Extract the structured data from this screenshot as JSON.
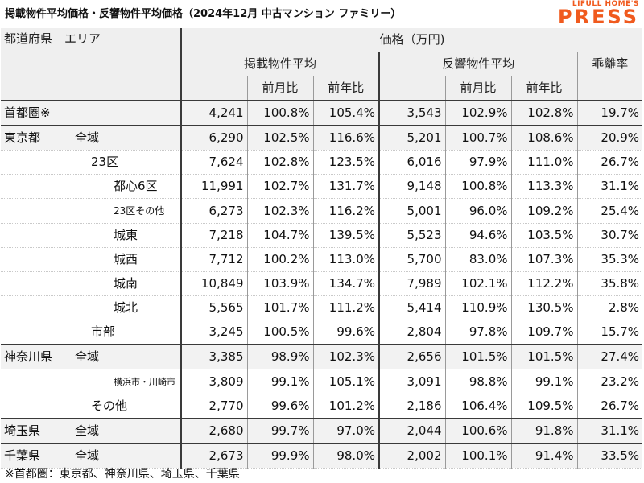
{
  "title": "掲載物件平均価格・反響物件平均価格（2024年12月 中古マンション ファミリー）",
  "logo": {
    "line1": "LIFULL HOME'S",
    "line2": "PRESS"
  },
  "header": {
    "region": "都道府県　エリア",
    "price_group": "価格（万円)",
    "listed_avg": "掲載物件平均",
    "response_avg": "反響物件平均",
    "divergence": "乖離率",
    "mom": "前月比",
    "yoy": "前年比"
  },
  "rows": [
    {
      "pref": "首都圏※",
      "area": "",
      "lp": "4,241",
      "lm": "100.8%",
      "ly": "105.4%",
      "rp": "3,543",
      "rm": "102.9%",
      "ry": "102.8%",
      "div": "19.7%"
    },
    {
      "pref": "東京都",
      "area": "全域",
      "lp": "6,290",
      "lm": "102.5%",
      "ly": "116.6%",
      "rp": "5,201",
      "rm": "100.7%",
      "ry": "108.6%",
      "div": "20.9%"
    },
    {
      "pref": "",
      "area": "23区",
      "lp": "7,624",
      "lm": "102.8%",
      "ly": "123.5%",
      "rp": "6,016",
      "rm": "97.9%",
      "ry": "111.0%",
      "div": "26.7%"
    },
    {
      "pref": "",
      "area": "都心6区",
      "lp": "11,991",
      "lm": "102.7%",
      "ly": "131.7%",
      "rp": "9,148",
      "rm": "100.8%",
      "ry": "113.3%",
      "div": "31.1%"
    },
    {
      "pref": "",
      "area": "23区その他",
      "lp": "6,273",
      "lm": "102.3%",
      "ly": "116.2%",
      "rp": "5,001",
      "rm": "96.0%",
      "ry": "109.2%",
      "div": "25.4%"
    },
    {
      "pref": "",
      "area": "城東",
      "lp": "7,218",
      "lm": "104.7%",
      "ly": "139.5%",
      "rp": "5,523",
      "rm": "94.6%",
      "ry": "103.5%",
      "div": "30.7%"
    },
    {
      "pref": "",
      "area": "城西",
      "lp": "7,712",
      "lm": "100.2%",
      "ly": "113.0%",
      "rp": "5,700",
      "rm": "83.0%",
      "ry": "107.3%",
      "div": "35.3%"
    },
    {
      "pref": "",
      "area": "城南",
      "lp": "10,849",
      "lm": "103.9%",
      "ly": "134.7%",
      "rp": "7,989",
      "rm": "102.1%",
      "ry": "112.2%",
      "div": "35.8%"
    },
    {
      "pref": "",
      "area": "城北",
      "lp": "5,565",
      "lm": "101.7%",
      "ly": "111.2%",
      "rp": "5,414",
      "rm": "110.9%",
      "ry": "130.5%",
      "div": "2.8%"
    },
    {
      "pref": "",
      "area": "市部",
      "lp": "3,245",
      "lm": "100.5%",
      "ly": "99.6%",
      "rp": "2,804",
      "rm": "97.8%",
      "ry": "109.7%",
      "div": "15.7%"
    },
    {
      "pref": "神奈川県",
      "area": "全域",
      "lp": "3,385",
      "lm": "98.9%",
      "ly": "102.3%",
      "rp": "2,656",
      "rm": "101.5%",
      "ry": "101.5%",
      "div": "27.4%"
    },
    {
      "pref": "",
      "area": "横浜市・川崎市",
      "lp": "3,809",
      "lm": "99.1%",
      "ly": "105.1%",
      "rp": "3,091",
      "rm": "98.8%",
      "ry": "99.1%",
      "div": "23.2%"
    },
    {
      "pref": "",
      "area": "その他",
      "lp": "2,770",
      "lm": "99.6%",
      "ly": "101.2%",
      "rp": "2,186",
      "rm": "106.4%",
      "ry": "109.5%",
      "div": "26.7%"
    },
    {
      "pref": "埼玉県",
      "area": "全域",
      "lp": "2,680",
      "lm": "99.7%",
      "ly": "97.0%",
      "rp": "2,044",
      "rm": "100.6%",
      "ry": "91.8%",
      "div": "31.1%"
    },
    {
      "pref": "千葉県",
      "area": "全域",
      "lp": "2,673",
      "lm": "99.9%",
      "ly": "98.0%",
      "rp": "2,002",
      "rm": "100.1%",
      "ry": "91.4%",
      "div": "33.5%"
    }
  ],
  "footnote": "※首都圏：東京都、神奈川県、埼玉県、千葉県"
}
